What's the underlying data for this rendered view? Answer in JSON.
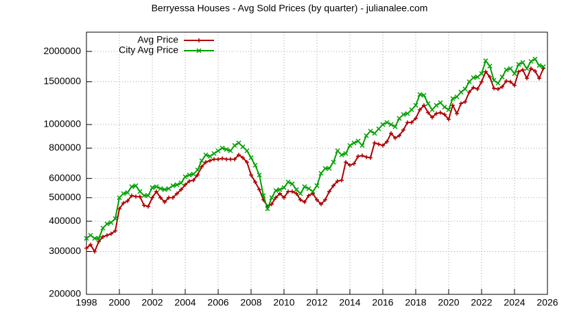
{
  "chart_data": {
    "type": "line",
    "title": "Berryessa Houses - Avg Sold Prices (by quarter) - julianalee.com",
    "x": [
      1998,
      1998.25,
      1998.5,
      1998.75,
      1999,
      1999.25,
      1999.5,
      1999.75,
      2000,
      2000.25,
      2000.5,
      2000.75,
      2001,
      2001.25,
      2001.5,
      2001.75,
      2002,
      2002.25,
      2002.5,
      2002.75,
      2003,
      2003.25,
      2003.5,
      2003.75,
      2004,
      2004.25,
      2004.5,
      2004.75,
      2005,
      2005.25,
      2005.5,
      2005.75,
      2006,
      2006.25,
      2006.5,
      2006.75,
      2007,
      2007.25,
      2007.5,
      2007.75,
      2008,
      2008.25,
      2008.5,
      2008.75,
      2009,
      2009.25,
      2009.5,
      2009.75,
      2010,
      2010.25,
      2010.5,
      2010.75,
      2011,
      2011.25,
      2011.5,
      2011.75,
      2012,
      2012.25,
      2012.5,
      2012.75,
      2013,
      2013.25,
      2013.5,
      2013.75,
      2014,
      2014.25,
      2014.5,
      2014.75,
      2015,
      2015.25,
      2015.5,
      2015.75,
      2016,
      2016.25,
      2016.5,
      2016.75,
      2017,
      2017.25,
      2017.5,
      2017.75,
      2018,
      2018.25,
      2018.5,
      2018.75,
      2019,
      2019.25,
      2019.5,
      2019.75,
      2020,
      2020.25,
      2020.5,
      2020.75,
      2021,
      2021.25,
      2021.5,
      2021.75,
      2022,
      2022.25,
      2022.5,
      2022.75,
      2023,
      2023.25,
      2023.5,
      2023.75,
      2024,
      2024.25,
      2024.5,
      2024.75,
      2025,
      2025.25,
      2025.5,
      2025.75
    ],
    "series": [
      {
        "name": "Avg Price",
        "color": "#b00000",
        "marker": "plus",
        "values": [
          310000,
          320000,
          300000,
          330000,
          345000,
          350000,
          355000,
          365000,
          450000,
          475000,
          485000,
          510000,
          505000,
          505000,
          465000,
          460000,
          500000,
          530000,
          500000,
          480000,
          500000,
          500000,
          520000,
          540000,
          565000,
          585000,
          590000,
          620000,
          670000,
          700000,
          710000,
          720000,
          720000,
          725000,
          720000,
          720000,
          720000,
          750000,
          730000,
          700000,
          620000,
          580000,
          540000,
          490000,
          460000,
          470000,
          500000,
          520000,
          500000,
          530000,
          530000,
          520000,
          490000,
          480000,
          510000,
          520000,
          490000,
          470000,
          490000,
          530000,
          560000,
          585000,
          590000,
          700000,
          680000,
          690000,
          740000,
          745000,
          735000,
          730000,
          840000,
          830000,
          820000,
          850000,
          920000,
          880000,
          900000,
          950000,
          1020000,
          1020000,
          1060000,
          1150000,
          1200000,
          1120000,
          1070000,
          1110000,
          1120000,
          1100000,
          1050000,
          1200000,
          1110000,
          1220000,
          1240000,
          1360000,
          1420000,
          1400000,
          1500000,
          1650000,
          1570000,
          1410000,
          1400000,
          1430000,
          1510000,
          1500000,
          1450000,
          1650000,
          1680000,
          1550000,
          1700000,
          1660000,
          1550000,
          1700000
        ]
      },
      {
        "name": "City Avg Price",
        "color": "#00a000",
        "marker": "cross",
        "values": [
          340000,
          350000,
          340000,
          340000,
          375000,
          390000,
          395000,
          410000,
          500000,
          520000,
          525000,
          555000,
          560000,
          530000,
          510000,
          510000,
          550000,
          555000,
          545000,
          540000,
          545000,
          560000,
          565000,
          575000,
          610000,
          620000,
          625000,
          650000,
          710000,
          750000,
          740000,
          760000,
          780000,
          800000,
          790000,
          780000,
          820000,
          840000,
          810000,
          780000,
          730000,
          680000,
          620000,
          510000,
          450000,
          500000,
          535000,
          540000,
          550000,
          580000,
          570000,
          540000,
          520000,
          555000,
          545000,
          530000,
          560000,
          630000,
          660000,
          660000,
          700000,
          780000,
          750000,
          760000,
          820000,
          840000,
          855000,
          820000,
          900000,
          940000,
          920000,
          960000,
          1000000,
          1020000,
          1000000,
          980000,
          1060000,
          1100000,
          1110000,
          1150000,
          1200000,
          1330000,
          1320000,
          1220000,
          1150000,
          1200000,
          1230000,
          1180000,
          1150000,
          1280000,
          1300000,
          1360000,
          1400000,
          1500000,
          1560000,
          1570000,
          1620000,
          1830000,
          1740000,
          1520000,
          1480000,
          1570000,
          1680000,
          1700000,
          1620000,
          1770000,
          1800000,
          1700000,
          1820000,
          1860000,
          1750000,
          1730000
        ]
      }
    ],
    "xlim": [
      1998,
      2026
    ],
    "xticks": [
      1998,
      2000,
      2002,
      2004,
      2006,
      2008,
      2010,
      2012,
      2014,
      2016,
      2018,
      2020,
      2022,
      2024,
      2026
    ],
    "ylim": [
      200000,
      2400000
    ],
    "yticks": [
      200000,
      300000,
      400000,
      500000,
      600000,
      800000,
      1000000,
      1500000,
      2000000
    ],
    "ylog": true,
    "grid": true,
    "legend": "top-left"
  }
}
